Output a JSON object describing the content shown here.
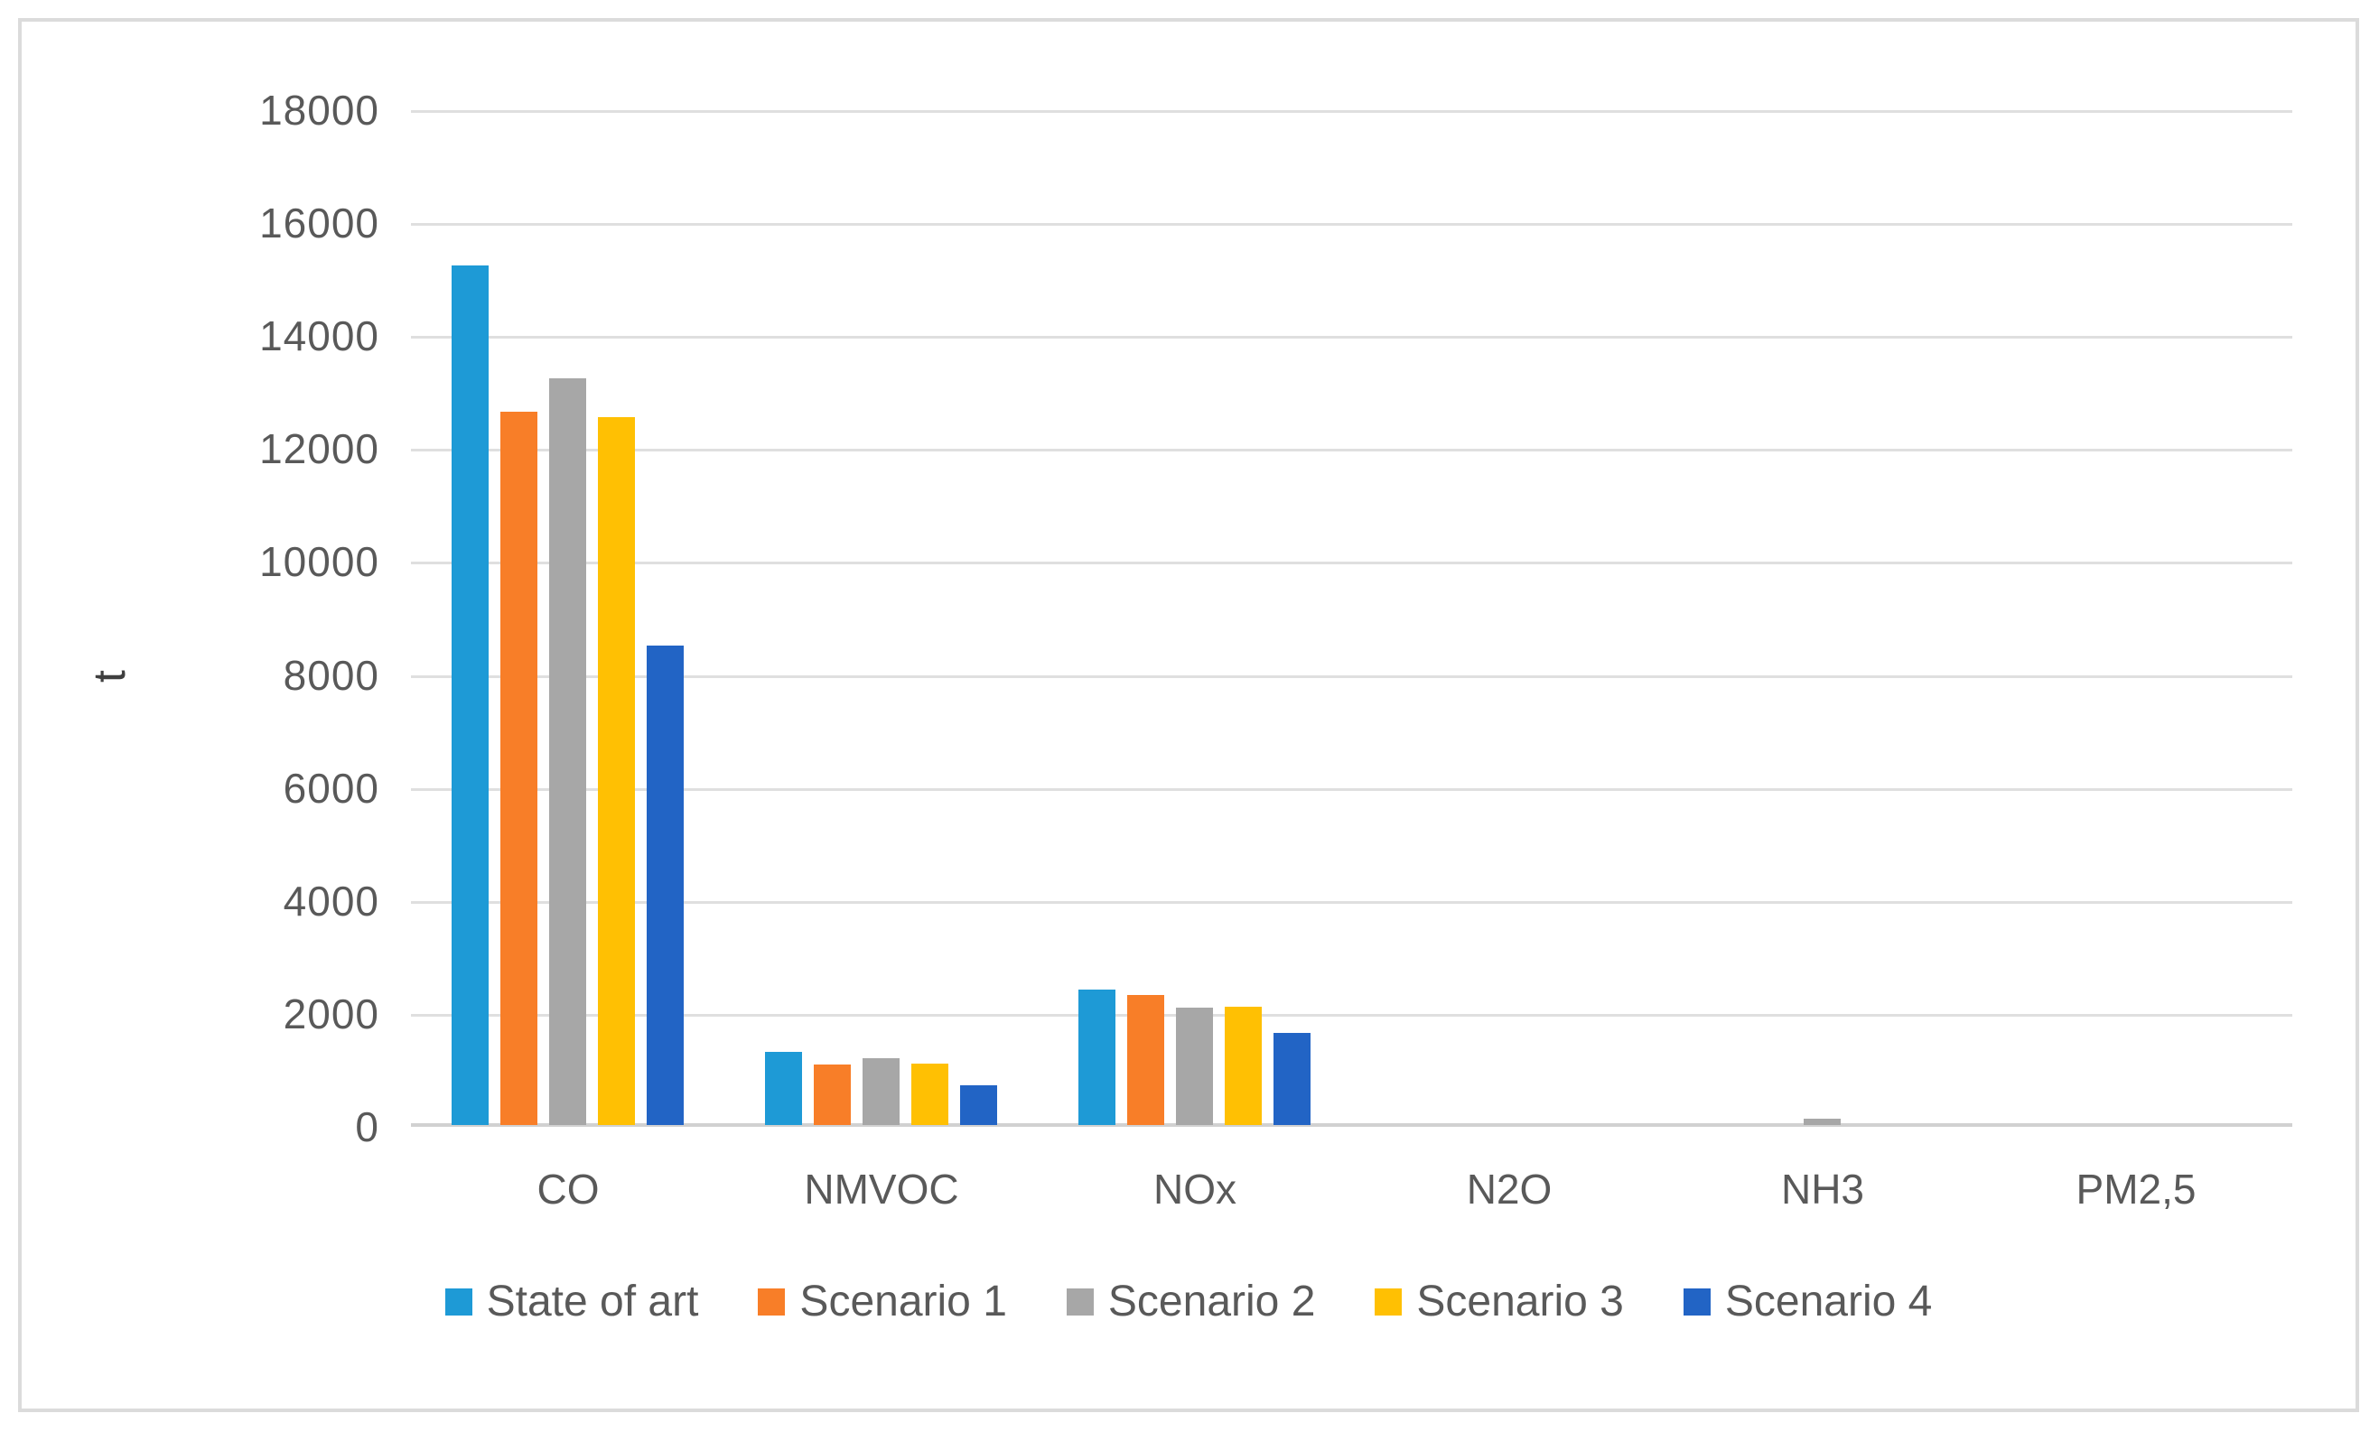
{
  "figure": {
    "background_color": "#FFFFFF",
    "frame_border_color": "#DBDBDB"
  },
  "chart_data": {
    "type": "bar",
    "title": "",
    "xlabel": "",
    "ylabel": "t",
    "categories": [
      "CO",
      "NMVOC",
      "NOx",
      "N2O",
      "NH3",
      "PM2,5"
    ],
    "series": [
      {
        "name": "State of art",
        "color": "#1E9AD6",
        "values": [
          15250,
          1300,
          2410,
          0,
          0,
          0
        ]
      },
      {
        "name": "Scenario 1",
        "color": "#F87E28",
        "values": [
          12650,
          1080,
          2300,
          0,
          0,
          0
        ]
      },
      {
        "name": "Scenario 2",
        "color": "#A7A7A7",
        "values": [
          13250,
          1190,
          2080,
          0,
          110,
          0
        ]
      },
      {
        "name": "Scenario 3",
        "color": "#FFC003",
        "values": [
          12550,
          1090,
          2090,
          0,
          0,
          0
        ]
      },
      {
        "name": "Scenario 4",
        "color": "#2264C5",
        "values": [
          8500,
          700,
          1640,
          0,
          0,
          0
        ]
      }
    ],
    "y_axis": {
      "min": 0,
      "max": 18000,
      "step": 2000,
      "tick_labels": [
        "18000",
        "16000",
        "14000",
        "12000",
        "10000",
        "8000",
        "6000",
        "4000",
        "2000",
        "0"
      ]
    },
    "grid": true,
    "gridline_color": "#DFDFDF",
    "axis_line_color": "#D1D1D1",
    "legend_position": "bottom"
  }
}
